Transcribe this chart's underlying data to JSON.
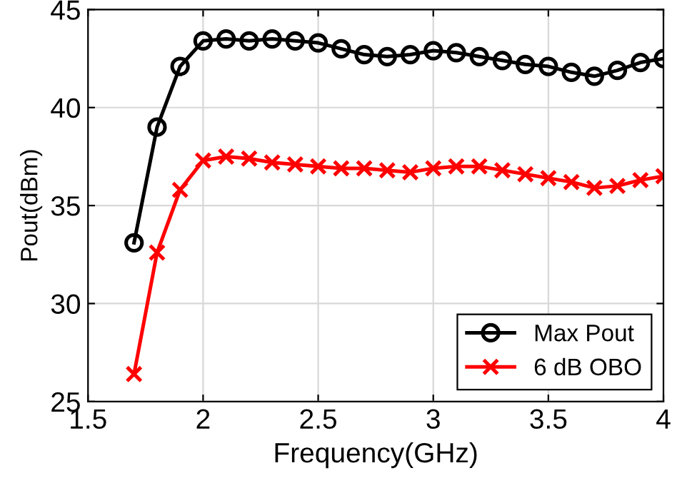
{
  "chart_data": {
    "type": "line",
    "xlabel": "Frequency(GHz)",
    "ylabel": "Pout(dBm)",
    "x": [
      1.7,
      1.8,
      1.9,
      2.0,
      2.1,
      2.2,
      2.3,
      2.4,
      2.5,
      2.6,
      2.7,
      2.8,
      2.9,
      3.0,
      3.1,
      3.2,
      3.3,
      3.4,
      3.5,
      3.6,
      3.7,
      3.8,
      3.9,
      4.0
    ],
    "series": [
      {
        "name": "Max Pout",
        "color": "#000000",
        "marker": "circle",
        "values": [
          33.1,
          39.0,
          42.1,
          43.4,
          43.5,
          43.4,
          43.5,
          43.4,
          43.3,
          43.0,
          42.7,
          42.6,
          42.7,
          42.9,
          42.8,
          42.6,
          42.4,
          42.2,
          42.1,
          41.8,
          41.6,
          41.9,
          42.3,
          42.5
        ]
      },
      {
        "name": "6 dB OBO",
        "color": "#ff0000",
        "marker": "cross",
        "values": [
          26.4,
          32.6,
          35.8,
          37.3,
          37.5,
          37.4,
          37.2,
          37.1,
          37.0,
          36.9,
          36.9,
          36.8,
          36.7,
          36.9,
          37.0,
          37.0,
          36.8,
          36.6,
          36.4,
          36.2,
          35.9,
          36.0,
          36.3,
          36.5
        ]
      }
    ],
    "xlim": [
      1.5,
      4
    ],
    "xticks": [
      1.5,
      2,
      2.5,
      3,
      3.5,
      4
    ],
    "ylim": [
      25,
      45
    ],
    "yticks": [
      25,
      30,
      35,
      40,
      45
    ],
    "grid": true,
    "legend": "bottom right",
    "line_style": "solid"
  }
}
